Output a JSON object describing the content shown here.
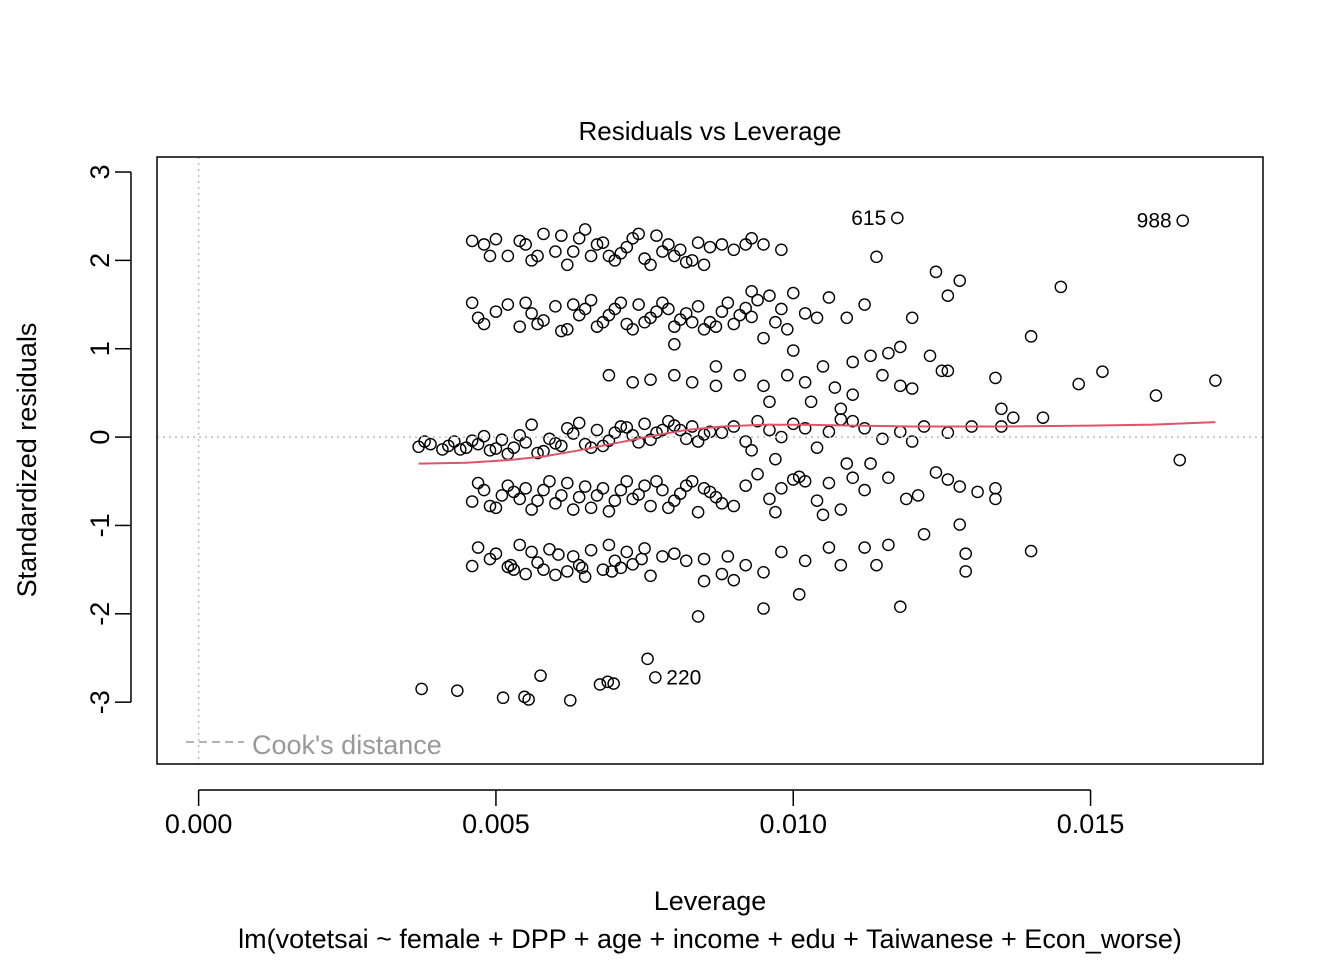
{
  "chart_data": {
    "type": "scatter",
    "title": "Residuals vs Leverage",
    "xlabel": "Leverage",
    "ylabel": "Standardized residuals",
    "subtitle": "lm(votetsai ~ female + DPP + age + income + edu + Taiwanese + Econ_worse)",
    "xlim": [
      -0.0007,
      0.0179
    ],
    "ylim": [
      -3.7,
      3.17
    ],
    "x_ticks": [
      0.0,
      0.005,
      0.01,
      0.015
    ],
    "x_tick_labels": [
      "0.000",
      "0.005",
      "0.010",
      "0.015"
    ],
    "y_ticks": [
      -3,
      -2,
      -1,
      0,
      1,
      2,
      3
    ],
    "y_tick_labels": [
      "-3",
      "-2",
      "-1",
      "0",
      "1",
      "2",
      "3"
    ],
    "reference_lines": {
      "x": 0,
      "y": 0,
      "style": "dotted",
      "color": "#bebebe"
    },
    "legend": {
      "label": "Cook's distance",
      "position": "bottom-left",
      "line_style": "dashed",
      "color": "#999999"
    },
    "point_style": {
      "shape": "open-circle",
      "color": "#000000"
    },
    "smooth_color": "#DF536B",
    "labeled_points": [
      {
        "x": 0.01175,
        "y": 2.48,
        "label": "615",
        "side": "left"
      },
      {
        "x": 0.01655,
        "y": 2.45,
        "label": "988",
        "side": "left"
      },
      {
        "x": 0.00768,
        "y": -2.72,
        "label": "220",
        "side": "right"
      }
    ],
    "smooth": {
      "x": [
        0.0037,
        0.0045,
        0.0052,
        0.0058,
        0.0064,
        0.007,
        0.0076,
        0.0082,
        0.0088,
        0.0095,
        0.0102,
        0.011,
        0.012,
        0.0135,
        0.015,
        0.016,
        0.0171
      ],
      "y": [
        -0.3,
        -0.29,
        -0.26,
        -0.22,
        -0.15,
        -0.07,
        0.01,
        0.08,
        0.12,
        0.14,
        0.14,
        0.13,
        0.12,
        0.12,
        0.13,
        0.14,
        0.17
      ]
    },
    "points": [
      [
        0.00375,
        -2.85
      ],
      [
        0.00435,
        -2.87
      ],
      [
        0.00512,
        -2.95
      ],
      [
        0.00548,
        -2.94
      ],
      [
        0.00555,
        -2.97
      ],
      [
        0.00575,
        -2.7
      ],
      [
        0.00625,
        -2.98
      ],
      [
        0.00675,
        -2.8
      ],
      [
        0.00688,
        -2.77
      ],
      [
        0.00698,
        -2.79
      ],
      [
        0.00755,
        -2.51
      ],
      [
        0.0046,
        -1.46
      ],
      [
        0.0049,
        -1.38
      ],
      [
        0.0052,
        -1.47
      ],
      [
        0.0053,
        -1.5
      ],
      [
        0.0055,
        -1.55
      ],
      [
        0.0058,
        -1.5
      ],
      [
        0.006,
        -1.56
      ],
      [
        0.0062,
        -1.52
      ],
      [
        0.0065,
        -1.58
      ],
      [
        0.0068,
        -1.5
      ],
      [
        0.0071,
        -1.48
      ],
      [
        0.0073,
        -1.44
      ],
      [
        0.0076,
        -1.57
      ],
      [
        0.0078,
        -1.35
      ],
      [
        0.0082,
        -1.4
      ],
      [
        0.0047,
        -1.25
      ],
      [
        0.005,
        -1.32
      ],
      [
        0.0054,
        -1.22
      ],
      [
        0.0056,
        -1.3
      ],
      [
        0.0059,
        -1.27
      ],
      [
        0.0063,
        -1.35
      ],
      [
        0.0066,
        -1.28
      ],
      [
        0.0069,
        -1.22
      ],
      [
        0.0072,
        -1.3
      ],
      [
        0.0075,
        -1.26
      ],
      [
        0.008,
        -1.32
      ],
      [
        0.0085,
        -1.38
      ],
      [
        0.0057,
        -1.42
      ],
      [
        0.0064,
        -1.45
      ],
      [
        0.007,
        -1.4
      ],
      [
        0.00525,
        -1.45
      ],
      [
        0.00605,
        -1.33
      ],
      [
        0.00645,
        -1.48
      ],
      [
        0.00695,
        -1.52
      ],
      [
        0.00745,
        -1.38
      ],
      [
        0.0088,
        -1.55
      ],
      [
        0.009,
        -1.62
      ],
      [
        0.0092,
        -1.45
      ],
      [
        0.0095,
        -1.53
      ],
      [
        0.0098,
        -1.3
      ],
      [
        0.0102,
        -1.4
      ],
      [
        0.0106,
        -1.25
      ],
      [
        0.0108,
        -1.45
      ],
      [
        0.0112,
        -1.25
      ],
      [
        0.0114,
        -1.45
      ],
      [
        0.0116,
        -1.22
      ],
      [
        0.0122,
        -1.1
      ],
      [
        0.0129,
        -1.32
      ],
      [
        0.0129,
        -1.52
      ],
      [
        0.014,
        -1.29
      ],
      [
        0.0085,
        -1.63
      ],
      [
        0.0089,
        -1.35
      ],
      [
        0.0101,
        -1.78
      ],
      [
        0.0095,
        -1.94
      ],
      [
        0.0118,
        -1.92
      ],
      [
        0.0084,
        -2.03
      ],
      [
        0.0046,
        -0.73
      ],
      [
        0.0048,
        -0.6
      ],
      [
        0.005,
        -0.8
      ],
      [
        0.0052,
        -0.55
      ],
      [
        0.0054,
        -0.7
      ],
      [
        0.0056,
        -0.82
      ],
      [
        0.0058,
        -0.6
      ],
      [
        0.006,
        -0.75
      ],
      [
        0.0062,
        -0.52
      ],
      [
        0.0064,
        -0.68
      ],
      [
        0.0066,
        -0.8
      ],
      [
        0.0068,
        -0.58
      ],
      [
        0.007,
        -0.72
      ],
      [
        0.0072,
        -0.5
      ],
      [
        0.0074,
        -0.65
      ],
      [
        0.0076,
        -0.78
      ],
      [
        0.0078,
        -0.6
      ],
      [
        0.008,
        -0.72
      ],
      [
        0.0082,
        -0.55
      ],
      [
        0.0084,
        -0.85
      ],
      [
        0.0086,
        -0.62
      ],
      [
        0.0088,
        -0.75
      ],
      [
        0.0047,
        -0.52
      ],
      [
        0.0051,
        -0.66
      ],
      [
        0.0055,
        -0.58
      ],
      [
        0.0059,
        -0.5
      ],
      [
        0.0063,
        -0.82
      ],
      [
        0.0067,
        -0.66
      ],
      [
        0.0071,
        -0.6
      ],
      [
        0.0075,
        -0.55
      ],
      [
        0.0079,
        -0.8
      ],
      [
        0.0083,
        -0.5
      ],
      [
        0.0087,
        -0.68
      ],
      [
        0.0049,
        -0.78
      ],
      [
        0.0053,
        -0.62
      ],
      [
        0.0057,
        -0.72
      ],
      [
        0.0061,
        -0.66
      ],
      [
        0.0065,
        -0.56
      ],
      [
        0.0069,
        -0.84
      ],
      [
        0.0073,
        -0.7
      ],
      [
        0.0077,
        -0.5
      ],
      [
        0.0081,
        -0.64
      ],
      [
        0.0085,
        -0.58
      ],
      [
        0.009,
        -0.78
      ],
      [
        0.0092,
        -0.55
      ],
      [
        0.0094,
        -0.42
      ],
      [
        0.0096,
        -0.7
      ],
      [
        0.0098,
        -0.58
      ],
      [
        0.01,
        -0.48
      ],
      [
        0.0102,
        -0.5
      ],
      [
        0.0104,
        -0.72
      ],
      [
        0.0106,
        -0.52
      ],
      [
        0.0108,
        -0.82
      ],
      [
        0.011,
        -0.46
      ],
      [
        0.0112,
        -0.6
      ],
      [
        0.0116,
        -0.46
      ],
      [
        0.0119,
        -0.7
      ],
      [
        0.0121,
        -0.66
      ],
      [
        0.0124,
        -0.4
      ],
      [
        0.0126,
        -0.48
      ],
      [
        0.0128,
        -0.56
      ],
      [
        0.0131,
        -0.62
      ],
      [
        0.0134,
        -0.58
      ],
      [
        0.0134,
        -0.7
      ],
      [
        0.0128,
        -0.99
      ],
      [
        0.0113,
        -0.3
      ],
      [
        0.0097,
        -0.85
      ],
      [
        0.0105,
        -0.88
      ],
      [
        0.0037,
        -0.11
      ],
      [
        0.0039,
        -0.08
      ],
      [
        0.0041,
        -0.14
      ],
      [
        0.0043,
        -0.05
      ],
      [
        0.0045,
        -0.12
      ],
      [
        0.0047,
        -0.08
      ],
      [
        0.0049,
        -0.15
      ],
      [
        0.0051,
        -0.03
      ],
      [
        0.0053,
        -0.12
      ],
      [
        0.0055,
        -0.06
      ],
      [
        0.0057,
        -0.18
      ],
      [
        0.0059,
        -0.02
      ],
      [
        0.0061,
        -0.1
      ],
      [
        0.0063,
        0.04
      ],
      [
        0.0065,
        -0.08
      ],
      [
        0.0067,
        0.08
      ],
      [
        0.0069,
        -0.04
      ],
      [
        0.0071,
        0.12
      ],
      [
        0.0073,
        0.02
      ],
      [
        0.0075,
        0.15
      ],
      [
        0.0077,
        0.05
      ],
      [
        0.0079,
        0.18
      ],
      [
        0.0081,
        0.08
      ],
      [
        0.0083,
        0.12
      ],
      [
        0.0085,
        0.03
      ],
      [
        0.0038,
        -0.05
      ],
      [
        0.0042,
        -0.1
      ],
      [
        0.0046,
        -0.04
      ],
      [
        0.005,
        -0.13
      ],
      [
        0.0054,
        0.02
      ],
      [
        0.0058,
        -0.16
      ],
      [
        0.0062,
        0.1
      ],
      [
        0.0066,
        -0.12
      ],
      [
        0.007,
        0.05
      ],
      [
        0.0074,
        -0.06
      ],
      [
        0.0078,
        0.08
      ],
      [
        0.0082,
        -0.02
      ],
      [
        0.0086,
        0.06
      ],
      [
        0.0044,
        -0.14
      ],
      [
        0.0048,
        0.01
      ],
      [
        0.0052,
        -0.19
      ],
      [
        0.0056,
        0.14
      ],
      [
        0.006,
        -0.07
      ],
      [
        0.0064,
        0.16
      ],
      [
        0.0068,
        -0.1
      ],
      [
        0.0072,
        0.11
      ],
      [
        0.0076,
        -0.03
      ],
      [
        0.008,
        0.13
      ],
      [
        0.0084,
        -0.05
      ],
      [
        0.0088,
        0.05
      ],
      [
        0.009,
        0.12
      ],
      [
        0.0092,
        -0.05
      ],
      [
        0.0094,
        0.18
      ],
      [
        0.0096,
        0.08
      ],
      [
        0.0098,
        0.0
      ],
      [
        0.01,
        0.15
      ],
      [
        0.0102,
        0.1
      ],
      [
        0.0104,
        -0.12
      ],
      [
        0.0106,
        0.06
      ],
      [
        0.0108,
        0.2
      ],
      [
        0.011,
        0.18
      ],
      [
        0.0112,
        0.1
      ],
      [
        0.0115,
        -0.02
      ],
      [
        0.0118,
        0.06
      ],
      [
        0.012,
        -0.05
      ],
      [
        0.0122,
        0.12
      ],
      [
        0.0126,
        0.05
      ],
      [
        0.013,
        0.12
      ],
      [
        0.0135,
        0.12
      ],
      [
        0.0137,
        0.22
      ],
      [
        0.0093,
        -0.15
      ],
      [
        0.0097,
        -0.25
      ],
      [
        0.0101,
        -0.45
      ],
      [
        0.0109,
        -0.3
      ],
      [
        0.0076,
        0.65
      ],
      [
        0.008,
        0.7
      ],
      [
        0.0083,
        0.62
      ],
      [
        0.0087,
        0.58
      ],
      [
        0.0091,
        0.7
      ],
      [
        0.0095,
        0.58
      ],
      [
        0.0099,
        0.7
      ],
      [
        0.0102,
        0.62
      ],
      [
        0.0105,
        0.8
      ],
      [
        0.0107,
        0.56
      ],
      [
        0.011,
        0.48
      ],
      [
        0.0113,
        0.92
      ],
      [
        0.0118,
        0.58
      ],
      [
        0.012,
        0.55
      ],
      [
        0.0123,
        0.92
      ],
      [
        0.0125,
        0.75
      ],
      [
        0.0126,
        0.75
      ],
      [
        0.0134,
        0.67
      ],
      [
        0.0142,
        0.22
      ],
      [
        0.0148,
        0.6
      ],
      [
        0.0152,
        0.74
      ],
      [
        0.0161,
        0.47
      ],
      [
        0.0165,
        -0.26
      ],
      [
        0.0171,
        0.64
      ],
      [
        0.01,
        0.98
      ],
      [
        0.0115,
        0.7
      ],
      [
        0.0069,
        0.7
      ],
      [
        0.0073,
        0.62
      ],
      [
        0.0135,
        0.32
      ],
      [
        0.0103,
        0.4
      ],
      [
        0.0108,
        0.32
      ],
      [
        0.0096,
        0.4
      ],
      [
        0.0046,
        1.52
      ],
      [
        0.0048,
        1.28
      ],
      [
        0.005,
        1.42
      ],
      [
        0.0052,
        1.5
      ],
      [
        0.0054,
        1.25
      ],
      [
        0.0056,
        1.4
      ],
      [
        0.0058,
        1.32
      ],
      [
        0.006,
        1.48
      ],
      [
        0.0062,
        1.22
      ],
      [
        0.0064,
        1.38
      ],
      [
        0.0066,
        1.55
      ],
      [
        0.0068,
        1.3
      ],
      [
        0.007,
        1.45
      ],
      [
        0.0072,
        1.28
      ],
      [
        0.0074,
        1.5
      ],
      [
        0.0076,
        1.35
      ],
      [
        0.0078,
        1.52
      ],
      [
        0.008,
        1.25
      ],
      [
        0.0082,
        1.4
      ],
      [
        0.0084,
        1.48
      ],
      [
        0.0086,
        1.3
      ],
      [
        0.0088,
        1.42
      ],
      [
        0.009,
        1.28
      ],
      [
        0.0092,
        1.46
      ],
      [
        0.0094,
        1.55
      ],
      [
        0.0047,
        1.35
      ],
      [
        0.0055,
        1.52
      ],
      [
        0.0061,
        1.2
      ],
      [
        0.0065,
        1.45
      ],
      [
        0.0069,
        1.38
      ],
      [
        0.0073,
        1.22
      ],
      [
        0.0077,
        1.42
      ],
      [
        0.0081,
        1.33
      ],
      [
        0.0085,
        1.22
      ],
      [
        0.0089,
        1.52
      ],
      [
        0.0093,
        1.36
      ],
      [
        0.0057,
        1.28
      ],
      [
        0.0063,
        1.5
      ],
      [
        0.0067,
        1.25
      ],
      [
        0.0071,
        1.52
      ],
      [
        0.0075,
        1.3
      ],
      [
        0.0079,
        1.45
      ],
      [
        0.0083,
        1.3
      ],
      [
        0.0087,
        1.25
      ],
      [
        0.0091,
        1.38
      ],
      [
        0.0096,
        1.6
      ],
      [
        0.0098,
        1.45
      ],
      [
        0.01,
        1.63
      ],
      [
        0.0102,
        1.4
      ],
      [
        0.0104,
        1.35
      ],
      [
        0.0106,
        1.58
      ],
      [
        0.0109,
        1.35
      ],
      [
        0.0112,
        1.5
      ],
      [
        0.0118,
        1.02
      ],
      [
        0.012,
        1.35
      ],
      [
        0.0124,
        1.87
      ],
      [
        0.0126,
        1.6
      ],
      [
        0.0128,
        1.77
      ],
      [
        0.014,
        1.14
      ],
      [
        0.0145,
        1.7
      ],
      [
        0.0114,
        2.04
      ],
      [
        0.0097,
        1.3
      ],
      [
        0.0099,
        1.22
      ],
      [
        0.0093,
        1.65
      ],
      [
        0.0095,
        1.12
      ],
      [
        0.008,
        1.05
      ],
      [
        0.0087,
        0.8
      ],
      [
        0.0116,
        0.95
      ],
      [
        0.011,
        0.85
      ],
      [
        0.0046,
        2.22
      ],
      [
        0.0048,
        2.18
      ],
      [
        0.005,
        2.24
      ],
      [
        0.0052,
        2.05
      ],
      [
        0.0054,
        2.22
      ],
      [
        0.0056,
        2.0
      ],
      [
        0.0058,
        2.3
      ],
      [
        0.006,
        2.1
      ],
      [
        0.0062,
        1.95
      ],
      [
        0.0064,
        2.25
      ],
      [
        0.0066,
        2.05
      ],
      [
        0.0068,
        2.2
      ],
      [
        0.007,
        2.0
      ],
      [
        0.0072,
        2.15
      ],
      [
        0.0074,
        2.3
      ],
      [
        0.0076,
        1.95
      ],
      [
        0.0078,
        2.1
      ],
      [
        0.008,
        2.05
      ],
      [
        0.0082,
        1.98
      ],
      [
        0.0084,
        2.2
      ],
      [
        0.0086,
        2.15
      ],
      [
        0.0088,
        2.18
      ],
      [
        0.0049,
        2.05
      ],
      [
        0.0055,
        2.18
      ],
      [
        0.0061,
        2.28
      ],
      [
        0.0065,
        2.35
      ],
      [
        0.0069,
        2.05
      ],
      [
        0.0073,
        2.25
      ],
      [
        0.0077,
        2.28
      ],
      [
        0.0081,
        2.12
      ],
      [
        0.0085,
        1.95
      ],
      [
        0.0057,
        2.05
      ],
      [
        0.0063,
        2.1
      ],
      [
        0.0067,
        2.18
      ],
      [
        0.0071,
        2.08
      ],
      [
        0.0075,
        2.02
      ],
      [
        0.0079,
        2.18
      ],
      [
        0.0083,
        2.0
      ],
      [
        0.0093,
        2.25
      ],
      [
        0.0095,
        2.18
      ],
      [
        0.0098,
        2.12
      ],
      [
        0.009,
        2.12
      ],
      [
        0.0092,
        2.18
      ]
    ]
  }
}
